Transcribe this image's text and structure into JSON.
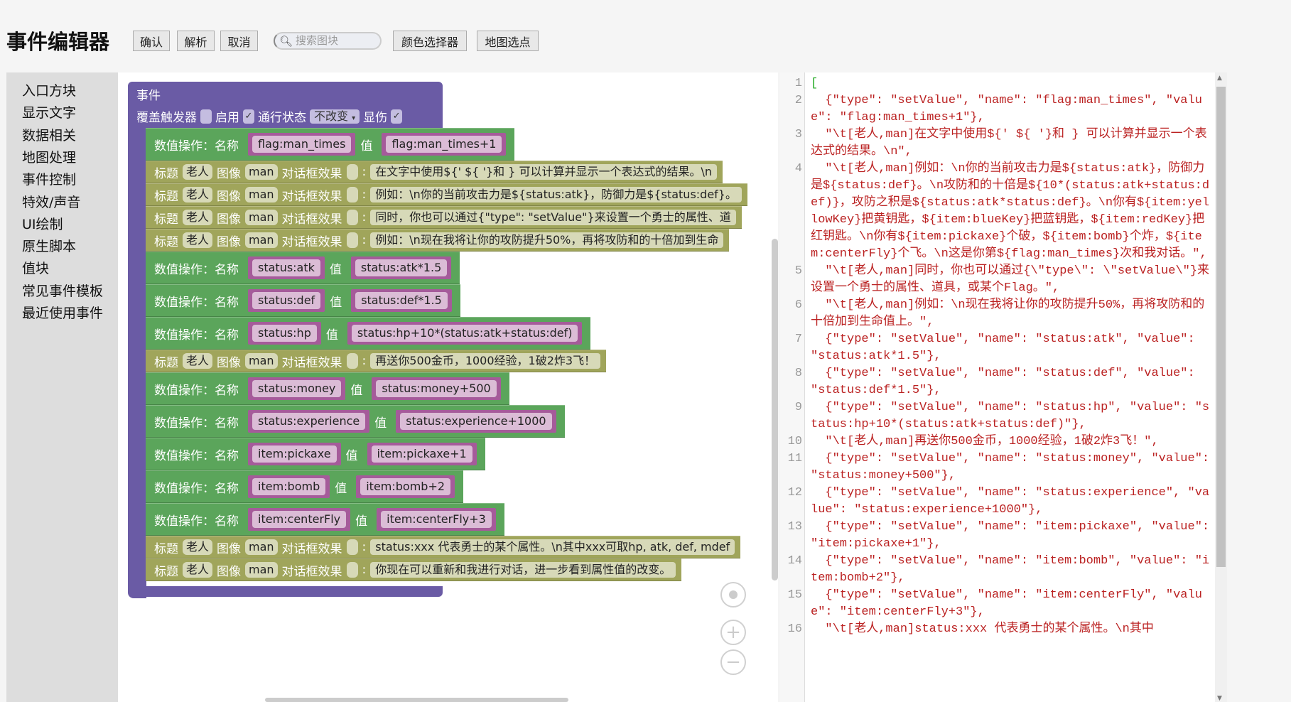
{
  "header": {
    "title": "事件编辑器",
    "buttons": [
      "确认",
      "解析",
      "取消",
      "颜色选择器",
      "地图选点"
    ],
    "search_placeholder": "搜索图块"
  },
  "sidebar": {
    "items": [
      "入口方块",
      "显示文字",
      "数据相关",
      "地图处理",
      "事件控制",
      "特效/声音",
      "UI绘制",
      "原生脚本",
      "值块",
      "常见事件模板",
      "最近使用事件"
    ]
  },
  "event_block": {
    "title": "事件",
    "override_label": "覆盖触发器",
    "override_checked": false,
    "enable_label": "启用",
    "enable_checked": true,
    "pass_label": "通行状态",
    "pass_value": "不改变",
    "damage_label": "显伤",
    "damage_checked": true
  },
  "labels": {
    "set": "数值操作：名称",
    "value": "值",
    "title": "标题",
    "image": "图像",
    "effect": "对话框效果",
    "colon": ":"
  },
  "rows": [
    {
      "type": "set",
      "name": "flag:man_times",
      "value": "flag:man_times+1"
    },
    {
      "type": "text",
      "speaker": "老人",
      "image": "man",
      "text": "在文字中使用${' ${ '}和 } 可以计算并显示一个表达式的结果。\\n"
    },
    {
      "type": "text",
      "speaker": "老人",
      "image": "man",
      "text": "例如：\\n你的当前攻击力是${status:atk}，防御力是${status:def}。"
    },
    {
      "type": "text",
      "speaker": "老人",
      "image": "man",
      "text": "同时，你也可以通过{\"type\": \"setValue\"}来设置一个勇士的属性、道"
    },
    {
      "type": "text",
      "speaker": "老人",
      "image": "man",
      "text": "例如：\\n现在我将让你的攻防提升50%，再将攻防和的十倍加到生命"
    },
    {
      "type": "set",
      "name": "status:atk",
      "value": "status:atk*1.5"
    },
    {
      "type": "set",
      "name": "status:def",
      "value": "status:def*1.5"
    },
    {
      "type": "set",
      "name": "status:hp",
      "value": "status:hp+10*(status:atk+status:def)"
    },
    {
      "type": "text",
      "speaker": "老人",
      "image": "man",
      "text": "再送你500金币，1000经验，1破2炸3飞！"
    },
    {
      "type": "set",
      "name": "status:money",
      "value": "status:money+500"
    },
    {
      "type": "set",
      "name": "status:experience",
      "value": "status:experience+1000"
    },
    {
      "type": "set",
      "name": "item:pickaxe",
      "value": "item:pickaxe+1"
    },
    {
      "type": "set",
      "name": "item:bomb",
      "value": "item:bomb+2"
    },
    {
      "type": "set",
      "name": "item:centerFly",
      "value": "item:centerFly+3"
    },
    {
      "type": "text",
      "speaker": "老人",
      "image": "man",
      "text": "status:xxx 代表勇士的某个属性。\\n其中xxx可取hp, atk, def, mdef"
    },
    {
      "type": "text",
      "speaker": "老人",
      "image": "man",
      "text": "你现在可以重新和我进行对话，进一步看到属性值的改变。"
    }
  ],
  "zoom_controls": {
    "icons": [
      "recenter-icon",
      "zoom-in-icon",
      "zoom-out-icon"
    ]
  },
  "editor": {
    "lines": [
      "[",
      "  {\"type\": \"setValue\", \"name\": \"flag:man_times\", \"value\": \"flag:man_times+1\"},",
      "  \"\\t[老人,man]在文字中使用${' ${ '}和 } 可以计算并显示一个表达式的结果。\\n\",",
      "  \"\\t[老人,man]例如：\\n你的当前攻击力是${status:atk}，防御力是${status:def}。\\n攻防和的十倍是${10*(status:atk+status:def)}，攻防之积是${status:atk*status:def}。\\n你有${item:yellowKey}把黄钥匙，${item:blueKey}把蓝钥匙，${item:redKey}把红钥匙。\\n你有${item:pickaxe}个破，${item:bomb}个炸，${item:centerFly}个飞。\\n这是你第${flag:man_times}次和我对话。\",",
      "  \"\\t[老人,man]同时，你也可以通过{\\\"type\\\": \\\"setValue\\\"}来设置一个勇士的属性、道具，或某个Flag。\",",
      "  \"\\t[老人,man]例如：\\n现在我将让你的攻防提升50%，再将攻防和的十倍加到生命值上。\",",
      "  {\"type\": \"setValue\", \"name\": \"status:atk\", \"value\": \"status:atk*1.5\"},",
      "  {\"type\": \"setValue\", \"name\": \"status:def\", \"value\": \"status:def*1.5\"},",
      "  {\"type\": \"setValue\", \"name\": \"status:hp\", \"value\": \"status:hp+10*(status:atk+status:def)\"},",
      "  \"\\t[老人,man]再送你500金币，1000经验，1破2炸3飞！\",",
      "  {\"type\": \"setValue\", \"name\": \"status:money\", \"value\": \"status:money+500\"},",
      "  {\"type\": \"setValue\", \"name\": \"status:experience\", \"value\": \"status:experience+1000\"},",
      "  {\"type\": \"setValue\", \"name\": \"item:pickaxe\", \"value\": \"item:pickaxe+1\"},",
      "  {\"type\": \"setValue\", \"name\": \"item:bomb\", \"value\": \"item:bomb+2\"},",
      "  {\"type\": \"setValue\", \"name\": \"item:centerFly\", \"value\": \"item:centerFly+3\"},",
      "  \"\\t[老人,man]status:xxx 代表勇士的某个属性。\\n其中"
    ]
  },
  "colors": {
    "event": "#6a5ba5",
    "set_block": "#5ba55b",
    "text_block": "#a0a55b",
    "variable": "#a55b9a",
    "code_string": "#bb2222"
  }
}
